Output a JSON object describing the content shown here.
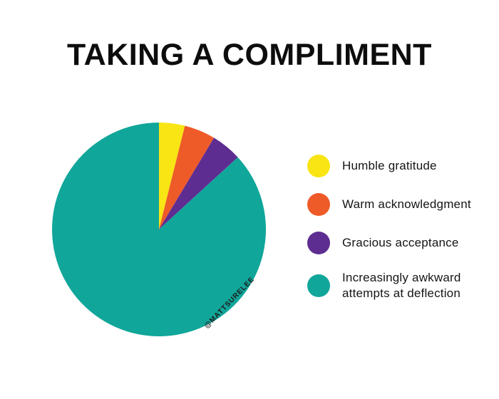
{
  "chart_data": {
    "type": "pie",
    "title": "TAKING A COMPLIMENT",
    "legend_position": "right",
    "start_angle_deg": 0,
    "direction": "clockwise",
    "slices": [
      {
        "label": "Humble gratitude",
        "value": 3.9,
        "color": "#F8E513"
      },
      {
        "label": "Warm acknowledgment",
        "value": 4.7,
        "color": "#EE5A28"
      },
      {
        "label": "Gracious acceptance",
        "value": 4.6,
        "color": "#5E2D91"
      },
      {
        "label": "Increasingly awkward attempts at deflection",
        "value": 86.8,
        "color": "#11A69A"
      }
    ]
  },
  "watermark": "@MATTSURELEE",
  "colors": {
    "background": "#FFFFFF",
    "title_text": "#0D0D0D",
    "legend_text": "#151515"
  }
}
